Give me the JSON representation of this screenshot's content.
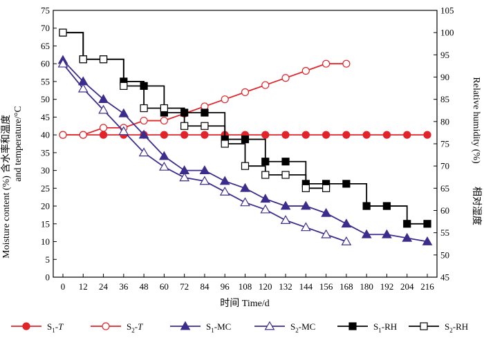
{
  "chart_data": {
    "type": "line",
    "xlabel": "时间  Time/d",
    "ylabel_left": "含水率和温度  Moisture content (%) and temperature/°C",
    "ylabel_left_cn": "含水率和温度",
    "ylabel_left_en1": "Moisture content (%)",
    "ylabel_left_en2": "and temperature/°C",
    "ylabel_right": "相对湿度  Relative humidity (%)",
    "ylabel_right_cn": "相对湿度",
    "ylabel_right_en": "Relative humidity (%)",
    "xlim": [
      0,
      216
    ],
    "ylim_left": [
      0,
      75
    ],
    "ylim_right": [
      45,
      105
    ],
    "x_ticks": [
      "0",
      "12",
      "24",
      "36",
      "48",
      "60",
      "72",
      "84",
      "96",
      "108",
      "120",
      "132",
      "144",
      "156",
      "168",
      "180",
      "192",
      "204",
      "216"
    ],
    "y_left_ticks": [
      "0",
      "5",
      "10",
      "15",
      "20",
      "25",
      "30",
      "35",
      "40",
      "45",
      "50",
      "55",
      "60",
      "65",
      "70",
      "75"
    ],
    "y_right_ticks": [
      "45",
      "50",
      "55",
      "60",
      "65",
      "70",
      "75",
      "80",
      "85",
      "90",
      "95",
      "100",
      "105"
    ],
    "grid": false,
    "legend_position": "bottom",
    "series": [
      {
        "name": "S1-T",
        "axis": "left",
        "step": false,
        "color": "#e0242a",
        "marker": "circle",
        "filled": true,
        "label_main": "S",
        "label_sub": "1",
        "label_suffix": "-T",
        "x": [
          0,
          12,
          24,
          36,
          48,
          60,
          72,
          84,
          96,
          108,
          120,
          132,
          144,
          156,
          168,
          180,
          192,
          204,
          216
        ],
        "y": [
          40,
          40,
          40,
          40,
          40,
          40,
          40,
          40,
          40,
          40,
          40,
          40,
          40,
          40,
          40,
          40,
          40,
          40,
          40
        ]
      },
      {
        "name": "S2-T",
        "axis": "left",
        "step": false,
        "color": "#e0242a",
        "marker": "circle",
        "filled": false,
        "label_main": "S",
        "label_sub": "2",
        "label_suffix": "-T",
        "x": [
          0,
          12,
          24,
          36,
          48,
          60,
          72,
          84,
          96,
          108,
          120,
          132,
          144,
          156,
          168
        ],
        "y": [
          40,
          40,
          42,
          42,
          44,
          44,
          46,
          48,
          50,
          52,
          54,
          56,
          58,
          60,
          60
        ]
      },
      {
        "name": "S1-MC",
        "axis": "left",
        "step": false,
        "color": "#3c2c8c",
        "marker": "triangle",
        "filled": true,
        "label_main": "S",
        "label_sub": "1",
        "label_suffix": "-MC",
        "x": [
          0,
          12,
          24,
          36,
          48,
          60,
          72,
          84,
          96,
          108,
          120,
          132,
          144,
          156,
          168,
          180,
          192,
          204,
          216
        ],
        "y": [
          61,
          55,
          50,
          46,
          40,
          34,
          30,
          30,
          27,
          25,
          22,
          20,
          20,
          18,
          15,
          12,
          12,
          11,
          10
        ]
      },
      {
        "name": "S2-MC",
        "axis": "left",
        "step": false,
        "color": "#3c2c8c",
        "marker": "triangle",
        "filled": false,
        "label_main": "S",
        "label_sub": "2",
        "label_suffix": "-MC",
        "x": [
          0,
          12,
          24,
          36,
          48,
          60,
          72,
          84,
          96,
          108,
          120,
          132,
          144,
          156,
          168
        ],
        "y": [
          60,
          53,
          47,
          41,
          35,
          31,
          28,
          27,
          24,
          21,
          19,
          16,
          14,
          12,
          10
        ]
      },
      {
        "name": "S1-RH",
        "axis": "right",
        "step": true,
        "color": "#000000",
        "marker": "square",
        "filled": true,
        "label_main": "S",
        "label_sub": "1",
        "label_suffix": "-RH",
        "x": [
          0,
          12,
          24,
          36,
          48,
          60,
          72,
          84,
          96,
          108,
          120,
          132,
          144,
          156,
          168,
          180,
          192,
          204,
          216
        ],
        "y": [
          100,
          94,
          94,
          89,
          88,
          82,
          82,
          82,
          76,
          76,
          71,
          71,
          66,
          66,
          66,
          61,
          61,
          57,
          57
        ]
      },
      {
        "name": "S2-RH",
        "axis": "right",
        "step": true,
        "color": "#000000",
        "marker": "square",
        "filled": false,
        "label_main": "S",
        "label_sub": "2",
        "label_suffix": "-RH",
        "x": [
          0,
          12,
          24,
          36,
          48,
          60,
          72,
          84,
          96,
          108,
          120,
          132,
          144,
          156
        ],
        "y": [
          100,
          94,
          94,
          88,
          83,
          83,
          79,
          79,
          75,
          70,
          68,
          68,
          65,
          65
        ]
      }
    ]
  }
}
